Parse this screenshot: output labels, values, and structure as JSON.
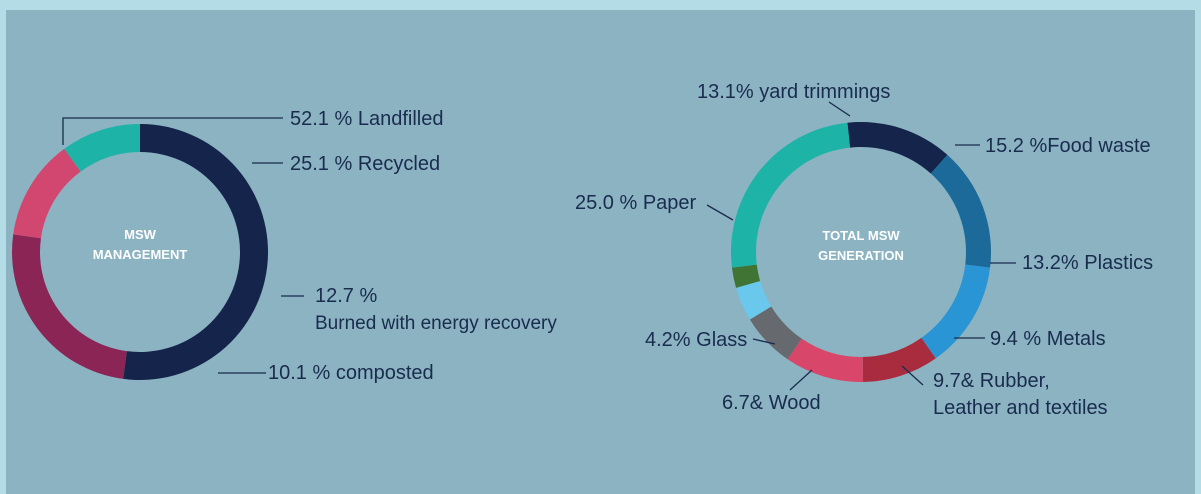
{
  "chart_data": [
    {
      "type": "pie",
      "variant": "donut",
      "center_label": [
        "MSW",
        "MANAGEMENT"
      ],
      "slices": [
        {
          "value": 52.1,
          "label": "52.1 % Landfilled",
          "color": "#15244a"
        },
        {
          "value": 25.1,
          "label": "25.1 % Recycled",
          "color": "#8a2556"
        },
        {
          "value": 12.7,
          "label": [
            "12.7 %",
            "Burned with energy recovery"
          ],
          "color": "#d1476f"
        },
        {
          "value": 10.1,
          "label": "10.1 % composted",
          "color": "#1db3a6"
        }
      ]
    },
    {
      "type": "pie",
      "variant": "donut",
      "center_label": [
        "TOTAL MSW",
        "GENERATION"
      ],
      "slices": [
        {
          "value": 13.1,
          "label": "13.1% yard trimmings",
          "color": "#15244a"
        },
        {
          "value": 15.2,
          "label": "15.2 %Food waste",
          "color": "#1b6a9a"
        },
        {
          "value": 13.2,
          "label": "13.2% Plastics",
          "color": "#2a95d4"
        },
        {
          "value": 9.4,
          "label": "9.4 % Metals",
          "color": "#a82c3e"
        },
        {
          "value": 9.7,
          "label": [
            "9.7& Rubber,",
            "Leather and textiles"
          ],
          "color": "#d8466a"
        },
        {
          "value": 6.7,
          "label": "6.7& Wood",
          "color": "#666a6e"
        },
        {
          "value": 4.2,
          "label": "4.2% Glass",
          "color": "#6ac8ec"
        },
        {
          "value": 2.5,
          "label": "",
          "color": "#3f7434"
        },
        {
          "value": 25.0,
          "label": "25.0 % Paper",
          "color": "#1db3a6"
        }
      ]
    }
  ]
}
